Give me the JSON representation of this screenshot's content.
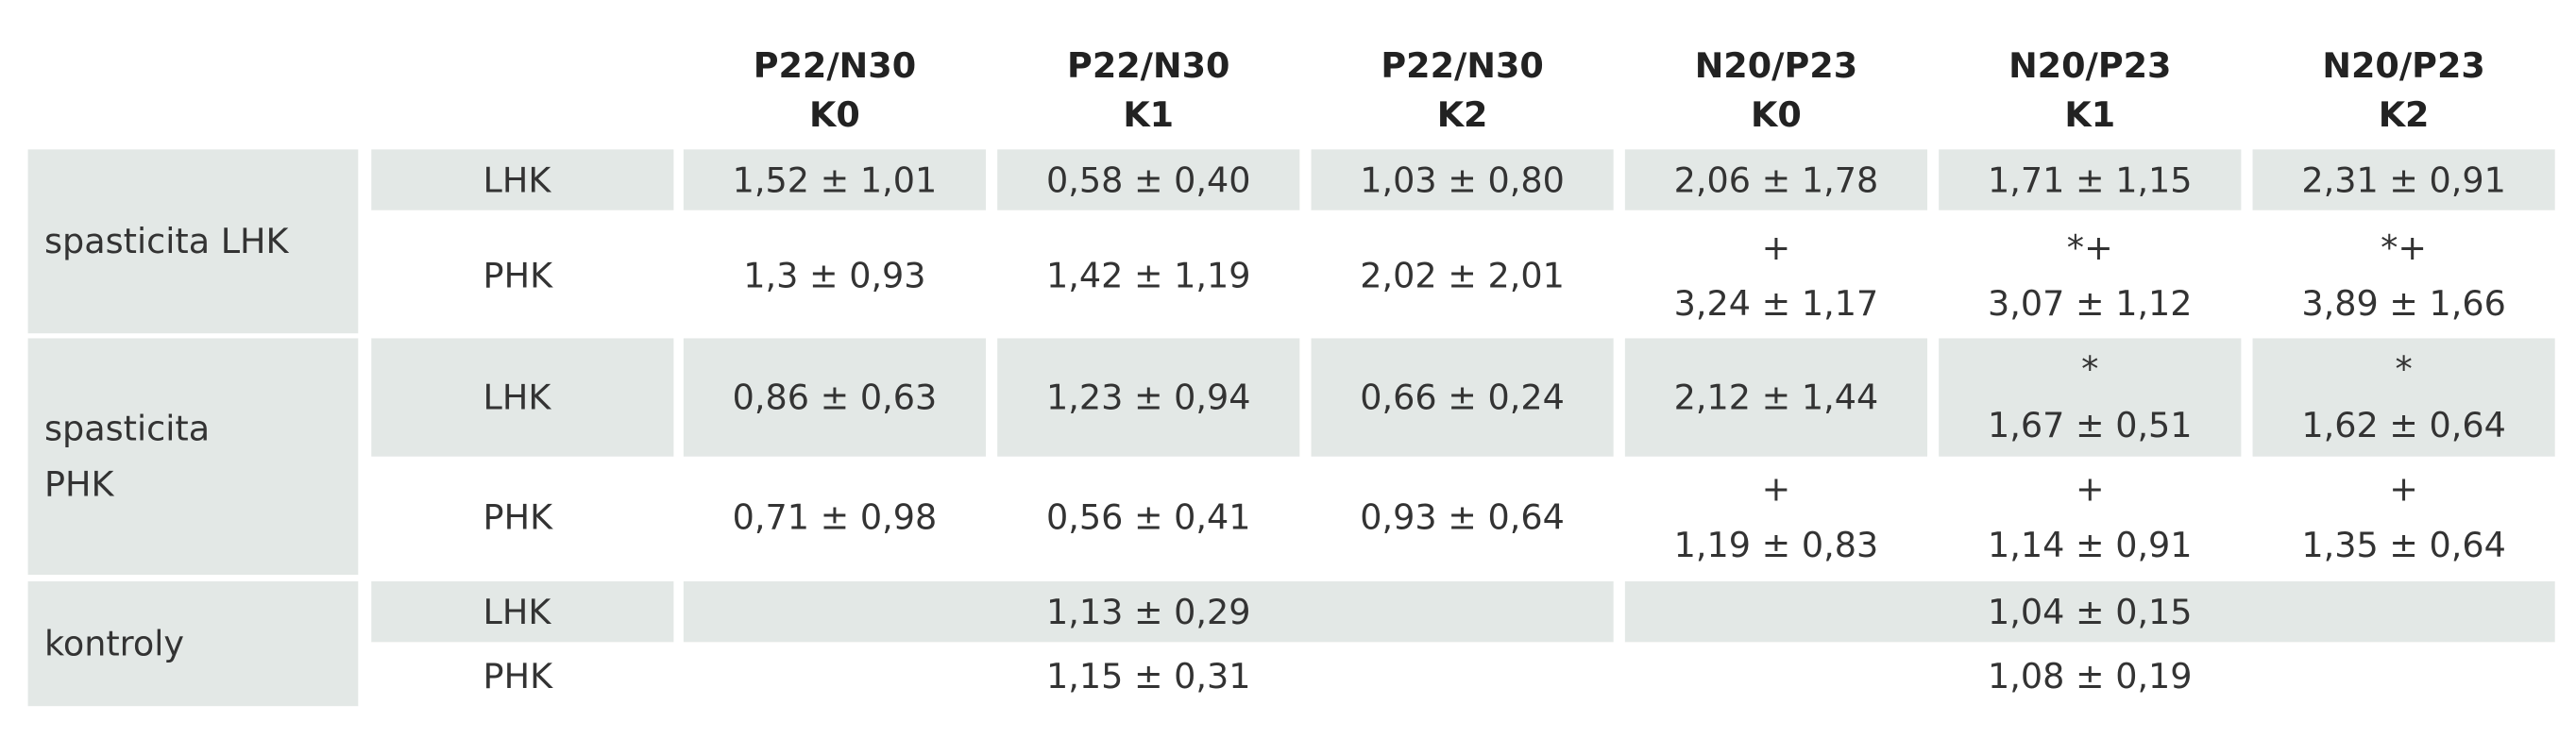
{
  "table": {
    "header": [
      [
        "P22/N30",
        "K0"
      ],
      [
        "P22/N30",
        "K1"
      ],
      [
        "P22/N30",
        "K2"
      ],
      [
        "N20/P23",
        "K0"
      ],
      [
        "N20/P23",
        "K1"
      ],
      [
        "N20/P23",
        "K2"
      ]
    ],
    "groups": [
      {
        "label": "spasticita LHK",
        "rows": [
          {
            "label": "LHK",
            "cells": [
              [
                "1,52 ± 1,01"
              ],
              [
                "0,58 ± 0,40"
              ],
              [
                "1,03 ± 0,80"
              ],
              [
                "2,06 ± 1,78"
              ],
              [
                "1,71 ± 1,15"
              ],
              [
                "2,31 ± 0,91"
              ]
            ]
          },
          {
            "label": "PHK",
            "cells": [
              [
                "1,3 ± 0,93"
              ],
              [
                "1,42 ± 1,19"
              ],
              [
                "2,02 ± 2,01"
              ],
              [
                "+",
                "3,24 ± 1,17"
              ],
              [
                "*+",
                "3,07 ± 1,12"
              ],
              [
                "*+",
                "3,89 ± 1,66"
              ]
            ]
          }
        ]
      },
      {
        "label": "spasticita PHK",
        "rows": [
          {
            "label": "LHK",
            "cells": [
              [
                "0,86 ± 0,63"
              ],
              [
                "1,23 ± 0,94"
              ],
              [
                "0,66 ± 0,24"
              ],
              [
                "2,12 ± 1,44"
              ],
              [
                "*",
                "1,67 ± 0,51"
              ],
              [
                "*",
                "1,62 ± 0,64"
              ]
            ]
          },
          {
            "label": "PHK",
            "cells": [
              [
                "0,71 ± 0,98"
              ],
              [
                "0,56 ± 0,41"
              ],
              [
                "0,93 ± 0,64"
              ],
              [
                "+",
                "1,19 ± 0,83"
              ],
              [
                "+",
                "1,14 ± 0,91"
              ],
              [
                "+",
                "1,35 ± 0,64"
              ]
            ]
          }
        ]
      },
      {
        "label": "kontroly",
        "rows": [
          {
            "label": "LHK",
            "cells": [
              [
                "1,13 ± 0,29"
              ],
              [
                "1,04 ± 0,15"
              ]
            ]
          },
          {
            "label": "PHK",
            "cells": [
              [
                "1,15 ± 0,31"
              ],
              [
                "1,08 ± 0,19"
              ]
            ]
          }
        ]
      }
    ]
  }
}
